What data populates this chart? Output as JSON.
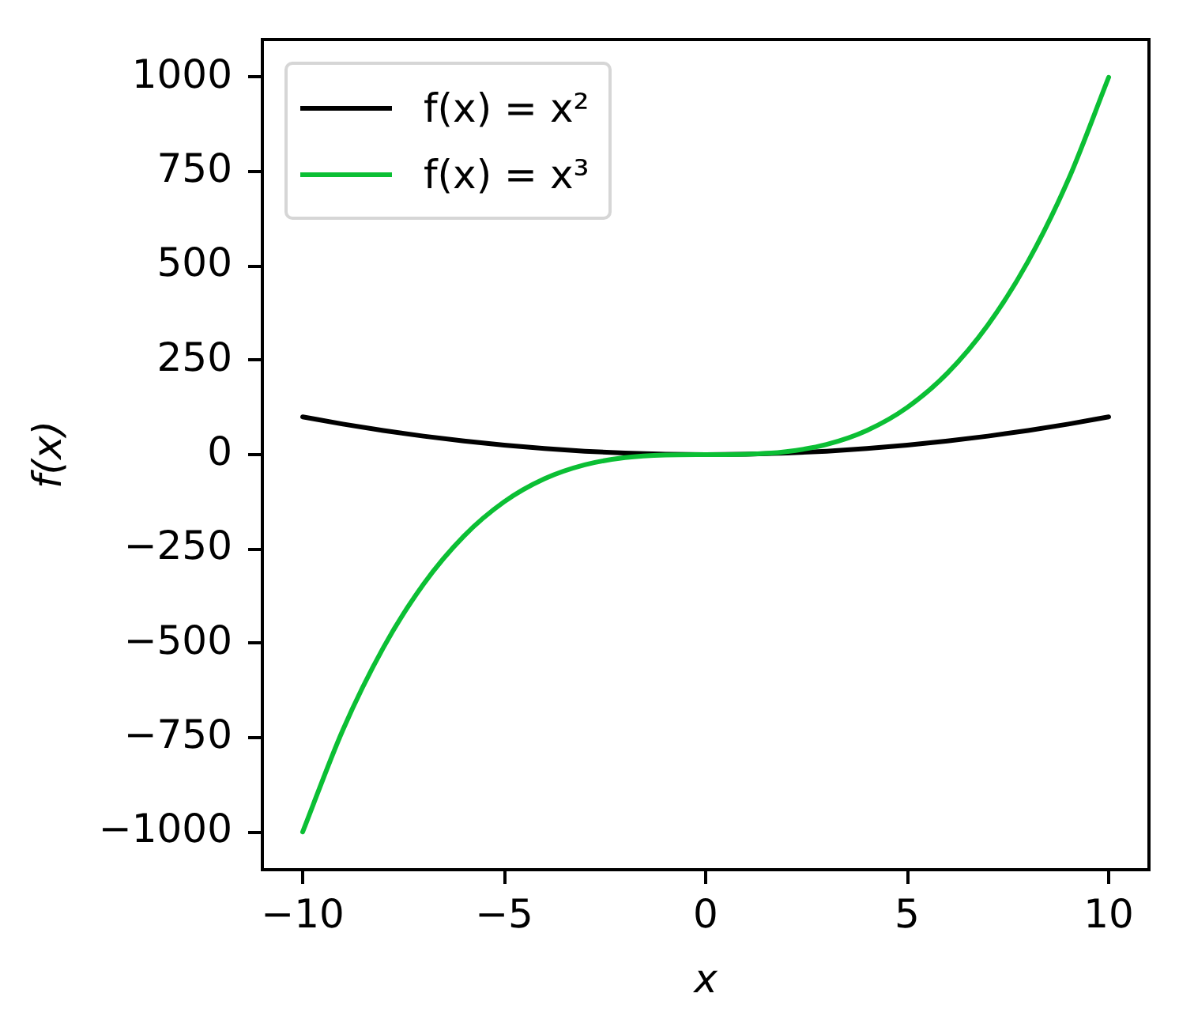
{
  "chart_data": {
    "type": "line",
    "xlabel": "x",
    "ylabel": "f(x)",
    "x": [
      -10,
      -9,
      -8,
      -7,
      -6,
      -5,
      -4,
      -3,
      -2,
      -1,
      0,
      1,
      2,
      3,
      4,
      5,
      6,
      7,
      8,
      9,
      10
    ],
    "series": [
      {
        "name": "f(x) = x²",
        "color": "#000000",
        "values": [
          100,
          81,
          64,
          49,
          36,
          25,
          16,
          9,
          4,
          1,
          0,
          1,
          4,
          9,
          16,
          25,
          36,
          49,
          64,
          81,
          100
        ]
      },
      {
        "name": "f(x) = x³",
        "color": "#0bbf34",
        "values": [
          -1000,
          -729,
          -512,
          -343,
          -216,
          -125,
          -64,
          -27,
          -8,
          -1,
          0,
          1,
          8,
          27,
          64,
          125,
          216,
          343,
          512,
          729,
          1000
        ]
      }
    ],
    "xlim": [
      -11,
      11
    ],
    "ylim": [
      -1100,
      1100
    ],
    "xticks": [
      {
        "value": -10,
        "label": "−10"
      },
      {
        "value": -5,
        "label": "−5"
      },
      0,
      5,
      10
    ],
    "yticks": [
      {
        "value": -1000,
        "label": "−1000"
      },
      {
        "value": -750,
        "label": "−750"
      },
      {
        "value": -500,
        "label": "−500"
      },
      {
        "value": -250,
        "label": "−250"
      },
      0,
      250,
      500,
      750,
      1000
    ],
    "grid": false,
    "legend": "top left"
  }
}
